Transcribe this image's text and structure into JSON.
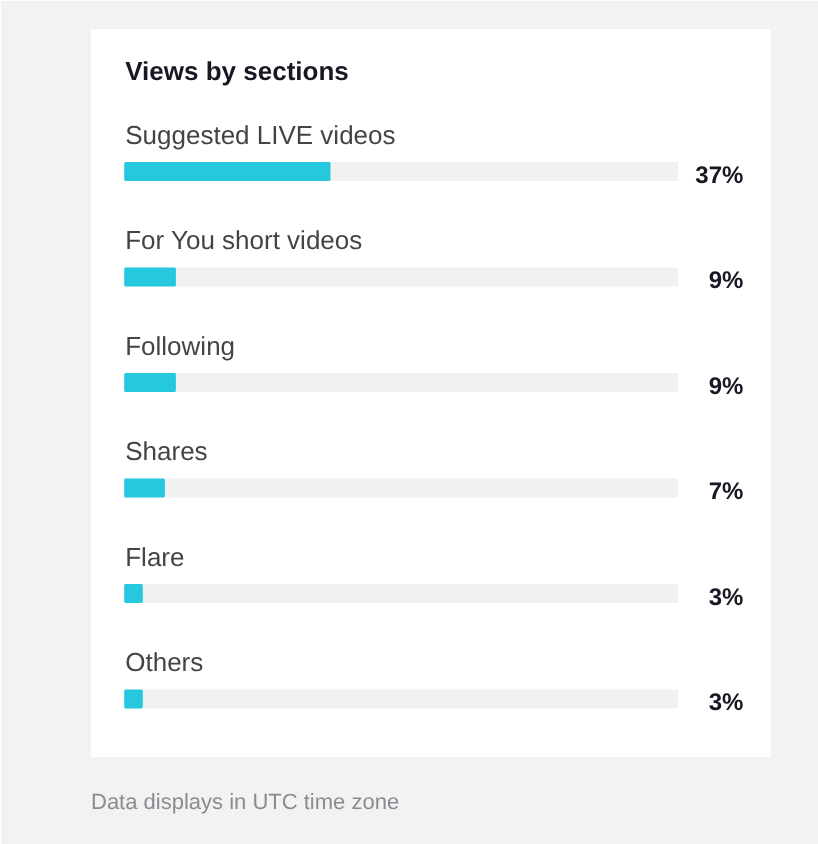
{
  "chart_data": {
    "type": "bar",
    "orientation": "horizontal",
    "title": "Views by sections",
    "categories": [
      "Suggested LIVE videos",
      "For You short videos",
      "Following",
      "Shares",
      "Flare",
      "Others"
    ],
    "values": [
      37,
      9,
      9,
      7,
      3,
      3
    ],
    "value_labels": [
      "37%",
      "9%",
      "9%",
      "7%",
      "3%",
      "3%"
    ],
    "color": "#25c8dc",
    "xlim": [
      0,
      100
    ],
    "tick_labels": false,
    "grid": false,
    "annotations": [
      "Data displays in UTC time zone"
    ]
  }
}
